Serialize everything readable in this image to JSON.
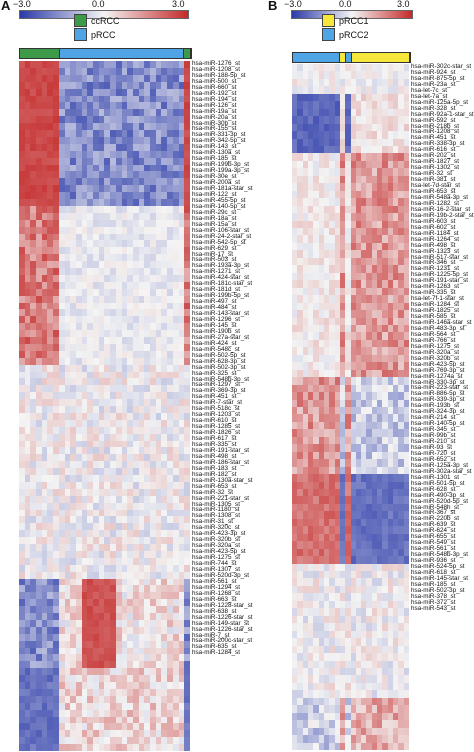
{
  "panelA": {
    "letter": "A",
    "scale": {
      "min": "−3.0",
      "mid": "0.0",
      "max": "3.0"
    },
    "legend": [
      {
        "label": "ccRCC",
        "color": "#3d9a48"
      },
      {
        "label": "pRCC",
        "color": "#4ea4e4"
      }
    ],
    "columns": 30,
    "annotation": [
      {
        "group": "ccRCC",
        "count": 7
      },
      {
        "group": "pRCC",
        "count": 22
      },
      {
        "group": "ccRCC",
        "count": 1
      }
    ],
    "rows": [
      "hsa-miR-1276_st",
      "hsa-miR-1208_st",
      "hsa-miR-188-5p_st",
      "hsa-miR-500_st",
      "hsa-miR-660_st",
      "hsa-miR-192_st",
      "hsa-miR-194_st",
      "hsa-miR-126_st",
      "hsa-miR-19a_st",
      "hsa-miR-20a_st",
      "hsa-miR-30b_st",
      "hsa-miR-155_st",
      "hsa-miR-331-3p_st",
      "hsa-miR-342-5p_st",
      "hsa-miR-143_st",
      "hsa-miR-130a_st",
      "hsa-miR-185_st",
      "hsa-miR-199b-3p_st",
      "hsa-miR-199a-3p_st",
      "hsa-miR-30e_st",
      "hsa-miR-200a_st",
      "hsa-miR-181a-star_st",
      "hsa-miR-122_st",
      "hsa-miR-455-5p_st",
      "hsa-miR-140-5p_st",
      "hsa-miR-29c_st",
      "hsa-miR-18a_st",
      "hsa-miR-15a_st",
      "hsa-miR-106-star_st",
      "hsa-miR-24-2-star_st",
      "hsa-miR-542-5p_st",
      "hsa-miR-629_st",
      "hsa-miR-17_st",
      "hsa-miR-503_st",
      "hsa-miR-193a-3p_st",
      "hsa-miR-1271_st",
      "hsa-miR-424-star_st",
      "hsa-miR-181c-star_st",
      "hsa-miR-181d_st",
      "hsa-miR-199b-5p_st",
      "hsa-miR-497_st",
      "hsa-miR-484_st",
      "hsa-miR-143-star_st",
      "hsa-miR-1296_st",
      "hsa-miR-145_st",
      "hsa-miR-190b_st",
      "hsa-miR-27a-star_st",
      "hsa-miR-424_st",
      "hsa-miR-548c_st",
      "hsa-miR-502-5p_st",
      "hsa-miR-628-3p_st",
      "hsa-miR-502-3p_st",
      "hsa-miR-325_st",
      "hsa-miR-548b-3p_st",
      "hsa-miR-1297_st",
      "hsa-miR-369-3p_st",
      "hsa-miR-451_st",
      "hsa-miR-7-star_st",
      "hsa-miR-518c_st",
      "hsa-miR-1203_st",
      "hsa-miR-610_st",
      "hsa-miR-1285_st",
      "hsa-miR-1826_st",
      "hsa-miR-617_st",
      "hsa-miR-335_st",
      "hsa-miR-191-star_st",
      "hsa-miR-498_st",
      "hsa-miR-186-star_st",
      "hsa-miR-183_st",
      "hsa-miR-182_st",
      "hsa-miR-130a-star_st",
      "hsa-miR-653_st",
      "hsa-miR-32_st",
      "hsa-miR-221-star_st",
      "hsa-miR-1305_st",
      "hsa-miR-1180_st",
      "hsa-miR-1308_st",
      "hsa-miR-31_st",
      "hsa-miR-320c_st",
      "hsa-miR-423-3p_st",
      "hsa-miR-320b_st",
      "hsa-miR-320a_st",
      "hsa-miR-423-5p_st",
      "hsa-miR-1275_st",
      "hsa-miR-744_st",
      "hsa-miR-1307_st",
      "hsa-miR-520d-3p_st",
      "hsa-miR-561_st",
      "hsa-miR-1294_st",
      "hsa-miR-1268_st",
      "hsa-miR-663_st",
      "hsa-miR-1228-star_st",
      "hsa-miR-638_st",
      "hsa-miR-1226-star_st",
      "hsa-miR-149-star_st",
      "hsa-miR-1226-star_st",
      "hsa-miR-7_st",
      "hsa-miR-200c-star_st",
      "hsa-miR-635_st",
      "hsa-miR-1284_st"
    ]
  },
  "panelB": {
    "letter": "B",
    "scale": {
      "min": "−3.0",
      "mid": "0.0",
      "max": "3.0"
    },
    "legend": [
      {
        "label": "pRCC1",
        "color": "#f6e73a"
      },
      {
        "label": "pRCC2",
        "color": "#4ea4e4"
      }
    ],
    "columns": 22,
    "annotation": [
      {
        "group": "pRCC2",
        "count": 9
      },
      {
        "group": "pRCC1",
        "count": 1
      },
      {
        "group": "pRCC2",
        "count": 1
      },
      {
        "group": "pRCC1",
        "count": 11
      }
    ],
    "rows": [
      "hsa-miR-302c-star_st",
      "hsa-miR-924_st",
      "hsa-miR-875-5p_st",
      "hsa-miR-23a_st",
      "hsa-let-7c_st",
      "hsa-let-7a_st",
      "hsa-miR-125a-5p_st",
      "hsa-miR-328_st",
      "hsa-miR-92a-1-star_st",
      "hsa-miR-592_st",
      "hsa-miR-218b_st",
      "hsa-miR-1208_st",
      "hsa-miR-451_st",
      "hsa-miR-338-3p_st",
      "hsa-miR-616_st",
      "hsa-miR-202_st",
      "hsa-miR-1827_st",
      "hsa-miR-1302_st",
      "hsa-miR-32_st",
      "hsa-miR-381_st",
      "hsa-let-7d-star_st",
      "hsa-miR-653_st",
      "hsa-miR-548a-3p_st",
      "hsa-miR-1282_st",
      "hsa-miR-16-2-star_st",
      "hsa-miR-19b-2-star_st",
      "hsa-miR-603_st",
      "hsa-miR-602_st",
      "hsa-miR-1184_st",
      "hsa-miR-1264_st",
      "hsa-miR-498_st",
      "hsa-miR-1323_st",
      "hsa-miR-517-star_st",
      "hsa-miR-346_st",
      "hsa-miR-1231_st",
      "hsa-miR-1225-5p_st",
      "hsa-miR-191-star_st",
      "hsa-miR-1263_st",
      "hsa-miR-335_st",
      "hsa-let-7f-1-star_st",
      "hsa-miR-1284_st",
      "hsa-miR-1825_st",
      "hsa-miR-585_st",
      "hsa-miR-146a-star_st",
      "hsa-miR-483-3p_st",
      "hsa-miR-564_st",
      "hsa-miR-766_st",
      "hsa-miR-1275_st",
      "hsa-miR-320a_st",
      "hsa-miR-320b_st",
      "hsa-miR-423-5p_st",
      "hsa-miR-769-3p_st",
      "hsa-miR-1274a_st",
      "hsa-miR-330-3p_st",
      "hsa-miR-223-star_st",
      "hsa-miR-886-5p_st",
      "hsa-miR-339-3p_st",
      "hsa-miR-193b_st",
      "hsa-miR-324-3p_st",
      "hsa-miR-214_st",
      "hsa-miR-140-5p_st",
      "hsa-miR-345_st",
      "hsa-miR-99b_st",
      "hsa-miR-210_st",
      "hsa-miR-93_st",
      "hsa-miR-720_st",
      "hsa-miR-652_st",
      "hsa-miR-125a-3p_st",
      "hsa-miR-302a-star_st",
      "hsa-miR-1301_st",
      "hsa-miR-501-5p_st",
      "hsa-miR-628_st",
      "hsa-miR-490-3p_st",
      "hsa-miR-520d-5p_st",
      "hsa-miR-548h_st",
      "hsa-miR-367_st",
      "hsa-miR-220b_st",
      "hsa-miR-639_st",
      "hsa-miR-624_st",
      "hsa-miR-655_st",
      "hsa-miR-549_st",
      "hsa-miR-561_st",
      "hsa-miR-548b-3p_st",
      "hsa-miR-936_st",
      "hsa-miR-524-5p_st",
      "hsa-miR-618_st",
      "hsa-miR-145-star_st",
      "hsa-miR-185_st",
      "hsa-miR-502-3p_st",
      "hsa-miR-378_st",
      "hsa-miR-372_st",
      "hsa-miR-543_st"
    ]
  },
  "colors": {
    "low": "#2a3aa8",
    "mid": "#f4f4f4",
    "high": "#c42a2a"
  }
}
